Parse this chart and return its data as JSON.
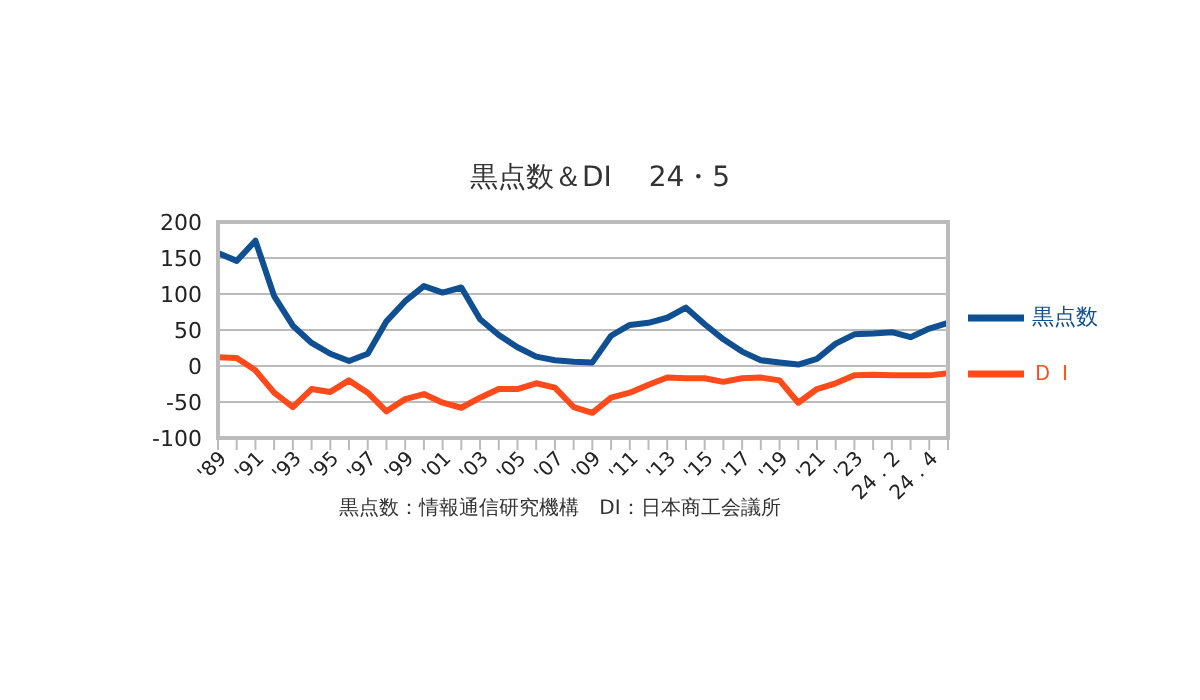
{
  "chart_data": {
    "type": "line",
    "title": "黒点数＆DI　 24・5",
    "annotations": [
      "黒点数：情報通信研究機構　DI：日本商工会議所"
    ],
    "categories": [
      "'89",
      null,
      "'91",
      null,
      "'93",
      null,
      "'95",
      null,
      "'97",
      null,
      "'99",
      null,
      "'01",
      null,
      "'03",
      null,
      "'05",
      null,
      "'07",
      null,
      "'09",
      null,
      "'11",
      null,
      "'13",
      null,
      "'15",
      null,
      "'17",
      null,
      "'19",
      null,
      "'21",
      null,
      "'23",
      null,
      "24．2",
      null,
      "24．4",
      null
    ],
    "series": [
      {
        "name": "黒点数",
        "color": "#0f4f92",
        "values": [
          157,
          146,
          174,
          97,
          56,
          32,
          17,
          7,
          17,
          62,
          90,
          111,
          102,
          109,
          65,
          43,
          26,
          13,
          8,
          6,
          5,
          42,
          57,
          60,
          67,
          81,
          58,
          37,
          20,
          8,
          5,
          2,
          10,
          31,
          44,
          45,
          47,
          40,
          52,
          60
        ]
      },
      {
        "name": "ＤＩ",
        "color": "#ff4b1c",
        "values": [
          12,
          11,
          -6,
          -37,
          -57,
          -32,
          -36,
          -20,
          -37,
          -63,
          -46,
          -39,
          -51,
          -58,
          -44,
          -32,
          -32,
          -24,
          -30,
          -57,
          -65,
          -44,
          -37,
          -26,
          -16,
          -17,
          -17,
          -22,
          -17,
          -16,
          -20,
          -51,
          -32,
          -24,
          -13,
          -12,
          -13,
          -13,
          -13,
          -10
        ]
      }
    ],
    "ylim": [
      -100,
      200
    ],
    "yticks": [
      -100,
      -50,
      0,
      50,
      100,
      150,
      200
    ],
    "grid": "y",
    "legend": "right",
    "marker": "none",
    "line_style": "solid"
  }
}
